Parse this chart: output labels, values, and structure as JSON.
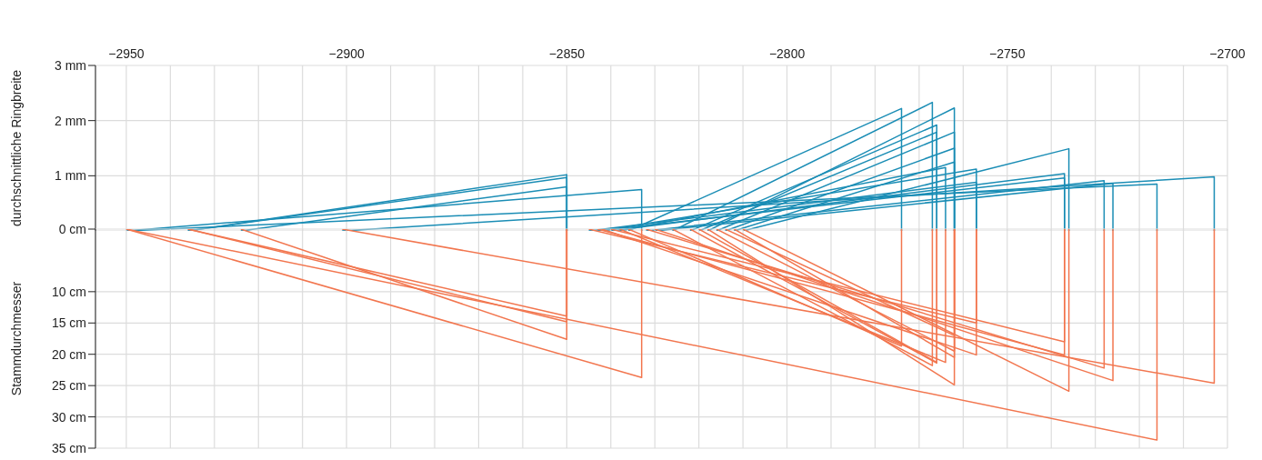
{
  "chart_data": [
    {
      "type": "line",
      "ylabel": "durchschnittliche Ringbreite",
      "xlim": [
        -2957,
        -2700
      ],
      "xticks": [
        {
          "value": -2950,
          "label": "−2950"
        },
        {
          "value": -2940,
          "label": null
        },
        {
          "value": -2930,
          "label": null
        },
        {
          "value": -2920,
          "label": null
        },
        {
          "value": -2910,
          "label": null
        },
        {
          "value": -2900,
          "label": "−2900"
        },
        {
          "value": -2890,
          "label": null
        },
        {
          "value": -2880,
          "label": null
        },
        {
          "value": -2870,
          "label": null
        },
        {
          "value": -2860,
          "label": null
        },
        {
          "value": -2850,
          "label": "−2850"
        },
        {
          "value": -2840,
          "label": null
        },
        {
          "value": -2830,
          "label": null
        },
        {
          "value": -2820,
          "label": null
        },
        {
          "value": -2810,
          "label": null
        },
        {
          "value": -2800,
          "label": "−2800"
        },
        {
          "value": -2790,
          "label": null
        },
        {
          "value": -2780,
          "label": null
        },
        {
          "value": -2770,
          "label": null
        },
        {
          "value": -2760,
          "label": null
        },
        {
          "value": -2750,
          "label": "−2750"
        },
        {
          "value": -2740,
          "label": null
        },
        {
          "value": -2730,
          "label": null
        },
        {
          "value": -2720,
          "label": null
        },
        {
          "value": -2710,
          "label": null
        },
        {
          "value": -2700,
          "label": "−2700"
        }
      ],
      "ylim": [
        0,
        3
      ],
      "yticks": [
        {
          "value": 1,
          "label": "1 mm"
        },
        {
          "value": 2,
          "label": "2 mm"
        },
        {
          "value": 3,
          "label": "3 mm"
        }
      ],
      "grid": true,
      "series": [
        {
          "color": "#1a8db5",
          "x": [
            -2950,
            -2716,
            -2716
          ],
          "values": [
            0,
            0.85,
            0
          ]
        },
        {
          "color": "#1a8db5",
          "x": [
            -2950,
            -2833,
            -2833
          ],
          "values": [
            0,
            0.75,
            0
          ]
        },
        {
          "color": "#1a8db5",
          "x": [
            -2936,
            -2850,
            -2850
          ],
          "values": [
            0,
            1.02,
            0
          ]
        },
        {
          "color": "#1a8db5",
          "x": [
            -2936,
            -2850,
            -2850
          ],
          "values": [
            0,
            0.97,
            0
          ]
        },
        {
          "color": "#1a8db5",
          "x": [
            -2924,
            -2850,
            -2850
          ],
          "values": [
            0,
            0.8,
            0
          ]
        },
        {
          "color": "#1a8db5",
          "x": [
            -2901,
            -2703,
            -2703
          ],
          "values": [
            0,
            0.98,
            0
          ]
        },
        {
          "color": "#1a8db5",
          "x": [
            -2836,
            -2774,
            -2774
          ],
          "values": [
            0,
            2.22,
            0
          ]
        },
        {
          "color": "#1a8db5",
          "x": [
            -2826,
            -2767,
            -2767
          ],
          "values": [
            0,
            2.33,
            0
          ]
        },
        {
          "color": "#1a8db5",
          "x": [
            -2822,
            -2766,
            -2766
          ],
          "values": [
            0,
            1.92,
            0
          ]
        },
        {
          "color": "#1a8db5",
          "x": [
            -2820,
            -2766,
            -2766
          ],
          "values": [
            0,
            1.79,
            0
          ]
        },
        {
          "color": "#1a8db5",
          "x": [
            -2838,
            -2764,
            -2764
          ],
          "values": [
            0,
            1.15,
            0
          ]
        },
        {
          "color": "#1a8db5",
          "x": [
            -2818,
            -2762,
            -2762
          ],
          "values": [
            0,
            2.23,
            0
          ]
        },
        {
          "color": "#1a8db5",
          "x": [
            -2816,
            -2762,
            -2762
          ],
          "values": [
            0,
            1.79,
            0
          ]
        },
        {
          "color": "#1a8db5",
          "x": [
            -2814,
            -2762,
            -2762
          ],
          "values": [
            0,
            1.5,
            0
          ]
        },
        {
          "color": "#1a8db5",
          "x": [
            -2812,
            -2762,
            -2762
          ],
          "values": [
            0,
            1.25,
            0
          ]
        },
        {
          "color": "#1a8db5",
          "x": [
            -2842,
            -2757,
            -2757
          ],
          "values": [
            0,
            1.12,
            0
          ]
        },
        {
          "color": "#1a8db5",
          "x": [
            -2845,
            -2757,
            -2757
          ],
          "values": [
            0,
            0.88,
            0
          ]
        },
        {
          "color": "#1a8db5",
          "x": [
            -2840,
            -2737,
            -2737
          ],
          "values": [
            0,
            1.04,
            0
          ]
        },
        {
          "color": "#1a8db5",
          "x": [
            -2843,
            -2737,
            -2737
          ],
          "values": [
            0,
            0.96,
            0
          ]
        },
        {
          "color": "#1a8db5",
          "x": [
            -2810,
            -2736,
            -2736
          ],
          "values": [
            0,
            1.49,
            0
          ]
        },
        {
          "color": "#1a8db5",
          "x": [
            -2832,
            -2728,
            -2728
          ],
          "values": [
            0,
            0.91,
            0
          ]
        },
        {
          "color": "#1a8db5",
          "x": [
            -2830,
            -2726,
            -2726
          ],
          "values": [
            0,
            0.86,
            0
          ]
        }
      ]
    },
    {
      "type": "line",
      "ylabel": "Stammdurchmesser",
      "xlim": [
        -2957,
        -2700
      ],
      "tick_labels": "y",
      "xticks": [
        -2950,
        -2940,
        -2930,
        -2920,
        -2910,
        -2900,
        -2890,
        -2880,
        -2870,
        -2860,
        -2850,
        -2840,
        -2830,
        -2820,
        -2810,
        -2800,
        -2790,
        -2780,
        -2770,
        -2760,
        -2750,
        -2740,
        -2730,
        -2720,
        -2710,
        -2700
      ],
      "ylim": [
        35,
        0
      ],
      "yticks": [
        {
          "value": 0,
          "label": "0 cm"
        },
        {
          "value": 10,
          "label": "10 cm"
        },
        {
          "value": 15,
          "label": "15 cm"
        },
        {
          "value": 20,
          "label": "20 cm"
        },
        {
          "value": 25,
          "label": "25 cm"
        },
        {
          "value": 30,
          "label": "30 cm"
        },
        {
          "value": 35,
          "label": "35 cm"
        }
      ],
      "grid": true,
      "series": [
        {
          "color": "#f2764f",
          "x": [
            -2950,
            -2716,
            -2716
          ],
          "values": [
            0,
            33.7,
            0
          ]
        },
        {
          "color": "#f2764f",
          "x": [
            -2950,
            -2833,
            -2833
          ],
          "values": [
            0,
            23.7,
            0
          ]
        },
        {
          "color": "#f2764f",
          "x": [
            -2936,
            -2850,
            -2850
          ],
          "values": [
            0,
            13.9,
            0
          ]
        },
        {
          "color": "#f2764f",
          "x": [
            -2936,
            -2850,
            -2850
          ],
          "values": [
            0,
            14.8,
            0
          ]
        },
        {
          "color": "#f2764f",
          "x": [
            -2924,
            -2850,
            -2850
          ],
          "values": [
            0,
            17.6,
            0
          ]
        },
        {
          "color": "#f2764f",
          "x": [
            -2901,
            -2703,
            -2703
          ],
          "values": [
            0,
            24.6,
            0
          ]
        },
        {
          "color": "#f2764f",
          "x": [
            -2836,
            -2774,
            -2774
          ],
          "values": [
            0,
            18.7,
            0
          ]
        },
        {
          "color": "#f2764f",
          "x": [
            -2826,
            -2767,
            -2767
          ],
          "values": [
            0,
            21.8,
            0
          ]
        },
        {
          "color": "#f2764f",
          "x": [
            -2822,
            -2766,
            -2766
          ],
          "values": [
            0,
            21.4,
            0
          ]
        },
        {
          "color": "#f2764f",
          "x": [
            -2820,
            -2766,
            -2766
          ],
          "values": [
            0,
            21.3,
            0
          ]
        },
        {
          "color": "#f2764f",
          "x": [
            -2838,
            -2764,
            -2764
          ],
          "values": [
            0,
            21.3,
            0
          ]
        },
        {
          "color": "#f2764f",
          "x": [
            -2818,
            -2762,
            -2762
          ],
          "values": [
            0,
            24.9,
            0
          ]
        },
        {
          "color": "#f2764f",
          "x": [
            -2816,
            -2762,
            -2762
          ],
          "values": [
            0,
            19.5,
            0
          ]
        },
        {
          "color": "#f2764f",
          "x": [
            -2814,
            -2762,
            -2762
          ],
          "values": [
            0,
            17,
            0
          ]
        },
        {
          "color": "#f2764f",
          "x": [
            -2812,
            -2762,
            -2762
          ],
          "values": [
            0,
            20.5,
            0
          ]
        },
        {
          "color": "#f2764f",
          "x": [
            -2842,
            -2757,
            -2757
          ],
          "values": [
            0,
            20.1,
            0
          ]
        },
        {
          "color": "#f2764f",
          "x": [
            -2845,
            -2757,
            -2757
          ],
          "values": [
            0,
            15,
            0
          ]
        },
        {
          "color": "#f2764f",
          "x": [
            -2840,
            -2737,
            -2737
          ],
          "values": [
            0,
            18,
            0
          ]
        },
        {
          "color": "#f2764f",
          "x": [
            -2843,
            -2737,
            -2737
          ],
          "values": [
            0,
            20.1,
            0
          ]
        },
        {
          "color": "#f2764f",
          "x": [
            -2810,
            -2736,
            -2736
          ],
          "values": [
            0,
            25.9,
            0
          ]
        },
        {
          "color": "#f2764f",
          "x": [
            -2832,
            -2728,
            -2728
          ],
          "values": [
            0,
            22.2,
            0
          ]
        },
        {
          "color": "#f2764f",
          "x": [
            -2830,
            -2726,
            -2726
          ],
          "values": [
            0,
            24.2,
            0
          ]
        }
      ]
    }
  ]
}
